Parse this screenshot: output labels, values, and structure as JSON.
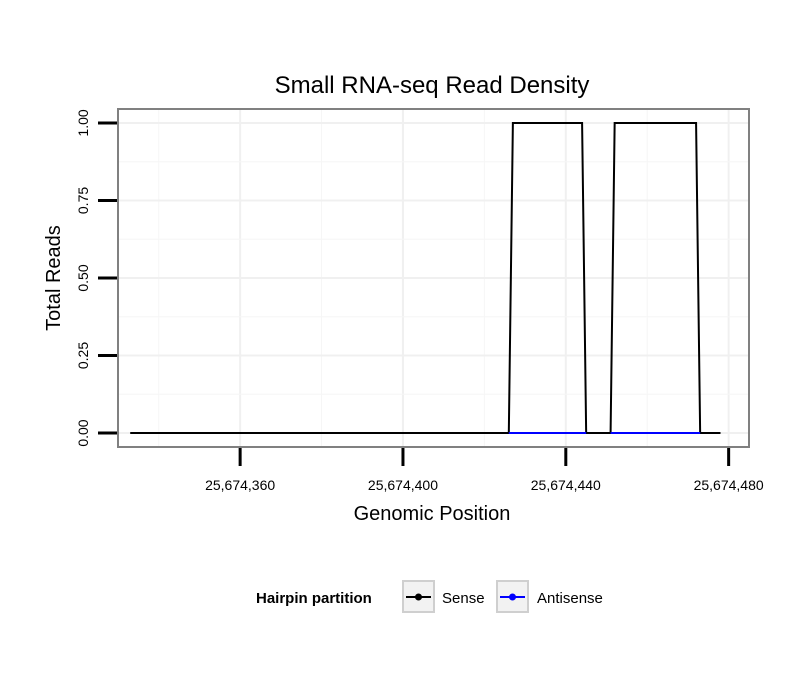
{
  "chart_data": {
    "type": "line",
    "title": "Small RNA-seq Read Density",
    "xlabel": "Genomic Position",
    "ylabel": "Total Reads",
    "xlim": [
      25674330,
      25674485
    ],
    "ylim": [
      -0.045,
      1.045
    ],
    "x_ticks": [
      25674360,
      25674400,
      25674440,
      25674480
    ],
    "x_tick_labels": [
      "25,674,360",
      "25,674,400",
      "25,674,440",
      "25,674,480"
    ],
    "y_ticks": [
      0,
      0.25,
      0.5,
      0.75,
      1.0
    ],
    "y_tick_labels": [
      "0.00",
      "0.25",
      "0.50",
      "0.75",
      "1.00"
    ],
    "grid": true,
    "legend": {
      "title": "Hairpin partition",
      "position": "bottom"
    },
    "series": [
      {
        "name": "Sense",
        "color": "#000000",
        "x": [
          25674333,
          25674426,
          25674427,
          25674444,
          25674445,
          25674451,
          25674452,
          25674472,
          25674473,
          25674478
        ],
        "y": [
          0,
          0,
          1,
          1,
          0,
          0,
          1,
          1,
          0,
          0
        ]
      },
      {
        "name": "Antisense",
        "color": "#0000ff",
        "x": [
          25674426,
          25674445,
          25674451,
          25674473
        ],
        "y": [
          0,
          0,
          0,
          0
        ],
        "segments": [
          [
            0,
            1
          ],
          [
            2,
            3
          ]
        ]
      }
    ]
  }
}
